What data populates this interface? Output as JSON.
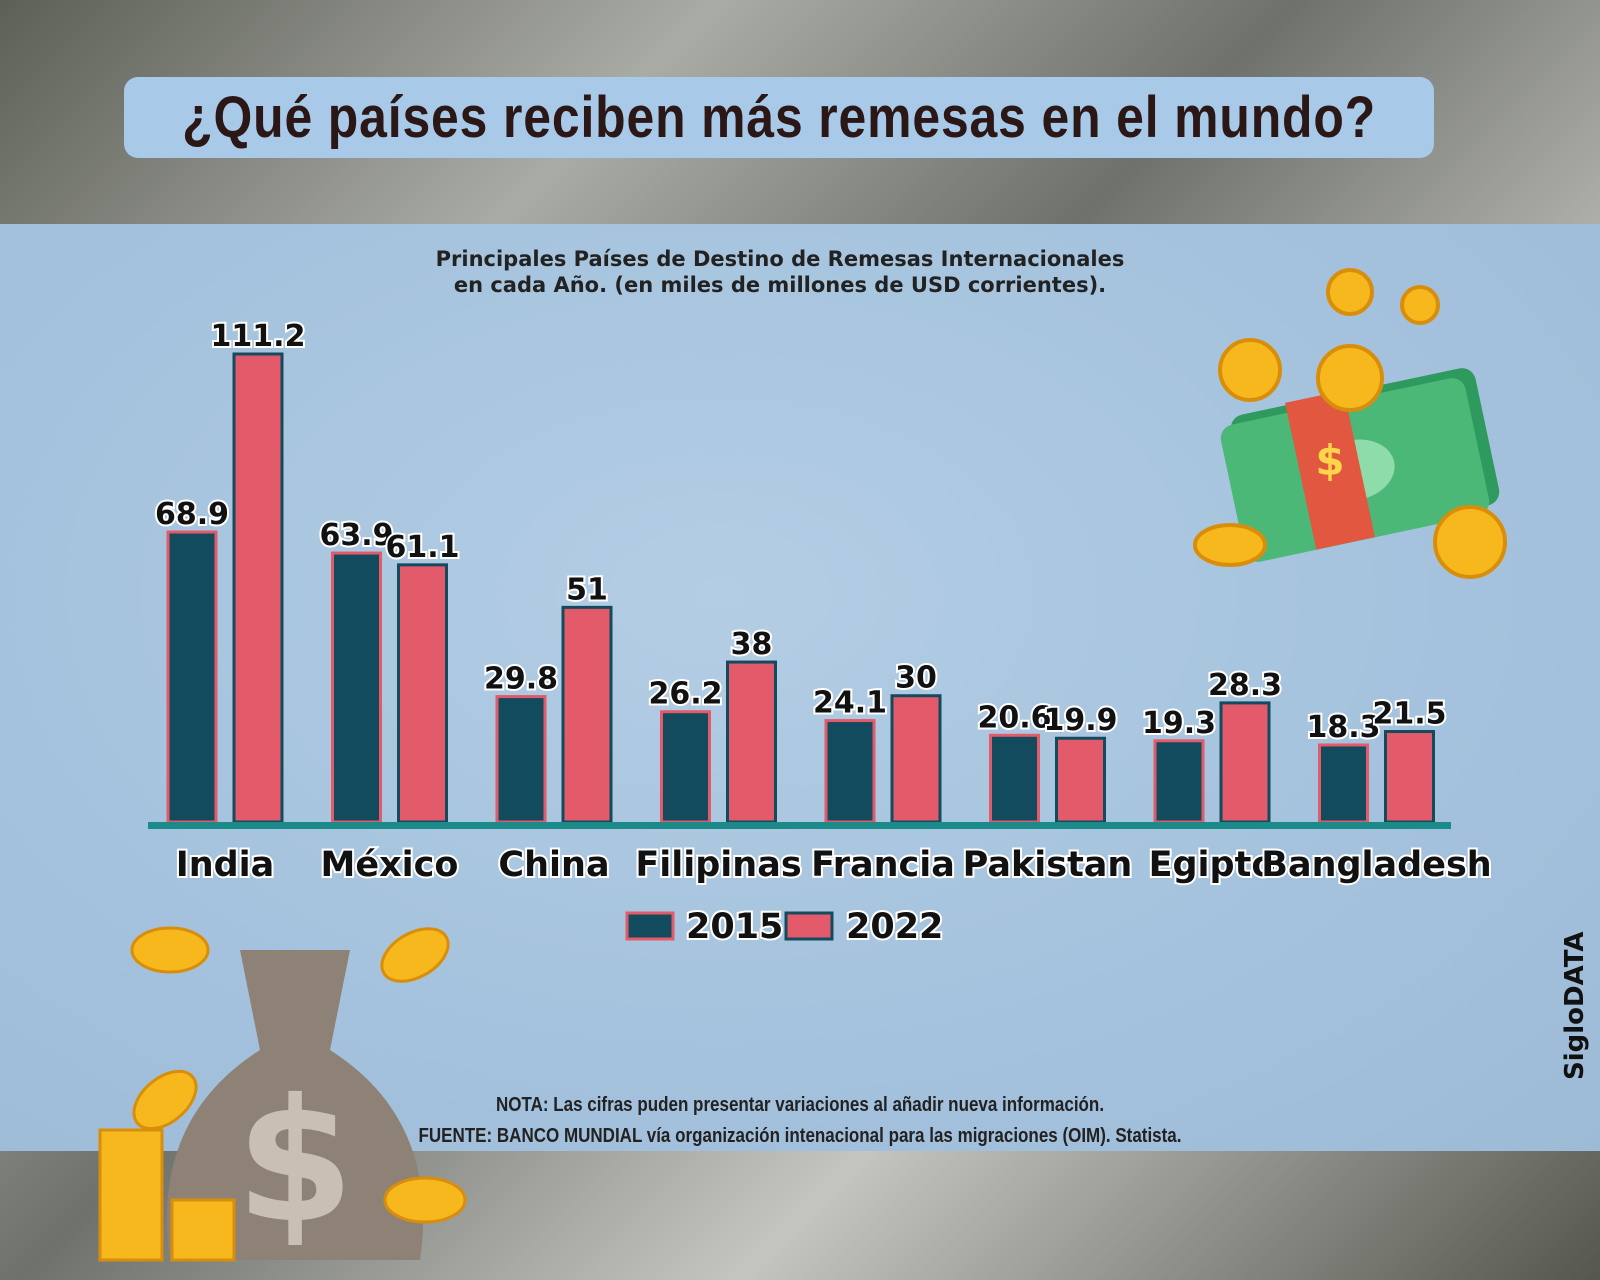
{
  "header": {
    "title": "¿Qué países reciben más remesas en el mundo?"
  },
  "notes": {
    "nota": "NOTA: Las cifras puden presentar variaciones al añadir nueva información.",
    "fuente": "FUENTE: BANCO MUNDIAL vía organización intenacional para las migraciones (OIM). Statista."
  },
  "brand": "SigloDATA",
  "colors": {
    "s2015": "#124a5e",
    "s2022": "#e35a6a",
    "axis": "#1d8a8a"
  },
  "chart_data": {
    "type": "bar",
    "title": "Principales Países de Destino de Remesas Internacionales",
    "subtitle": "en cada Año. (en miles de millones de USD corrientes).",
    "categories": [
      "India",
      "México",
      "China",
      "Filipinas",
      "Francia",
      "Pakistan",
      "Egipto",
      "Bangladesh"
    ],
    "series": [
      {
        "name": "2015",
        "values": [
          68.9,
          63.9,
          29.8,
          26.2,
          24.1,
          20.6,
          19.3,
          18.3
        ],
        "labels": [
          "68.9",
          "63.9",
          "29.8",
          "26.2",
          "24.1",
          "20.6",
          "19.3",
          "18.3"
        ]
      },
      {
        "name": "2022",
        "values": [
          111.2,
          61.1,
          51,
          38,
          30,
          19.9,
          28.3,
          21.5
        ],
        "labels": [
          "111.2",
          "61.1",
          "51",
          "38",
          "30",
          "19.9",
          "28.3",
          "21.5"
        ]
      }
    ],
    "ylim": [
      0,
      111.2
    ],
    "legend": "bottom-center",
    "grid": false
  }
}
